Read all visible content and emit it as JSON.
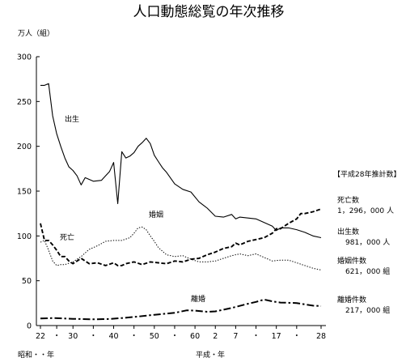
{
  "chart_data": {
    "type": "line",
    "title": "人口動態総覧の年次推移",
    "ylabel": "万人（組）",
    "ylim": [
      0,
      300
    ],
    "yticks": [
      0,
      50,
      100,
      150,
      200,
      250,
      300
    ],
    "x_range": [
      1947,
      2016
    ],
    "x_ticks": [
      {
        "x": 1947,
        "label": "22"
      },
      {
        "x": 1951,
        "label": "・"
      },
      {
        "x": 1955,
        "label": "30"
      },
      {
        "x": 1960,
        "label": "・"
      },
      {
        "x": 1965,
        "label": "40"
      },
      {
        "x": 1970,
        "label": "・"
      },
      {
        "x": 1975,
        "label": "50"
      },
      {
        "x": 1980,
        "label": "・"
      },
      {
        "x": 1985,
        "label": "60"
      },
      {
        "x": 1990,
        "label": "2"
      },
      {
        "x": 1995,
        "label": "7"
      },
      {
        "x": 2000,
        "label": "・"
      },
      {
        "x": 2005,
        "label": "17"
      },
      {
        "x": 2010,
        "label": "・"
      },
      {
        "x": 2016,
        "label": "28"
      }
    ],
    "xlabel_showa": "昭和・・年",
    "xlabel_heisei": "平成・年",
    "legend_header": "【平成28年推計数】",
    "series": [
      {
        "name": "出生",
        "style": "solid",
        "x": [
          1947,
          1948,
          1949,
          1950,
          1951,
          1952,
          1953,
          1954,
          1955,
          1956,
          1957,
          1958,
          1960,
          1962,
          1964,
          1965,
          1966,
          1967,
          1968,
          1969,
          1970,
          1971,
          1972,
          1973,
          1974,
          1975,
          1976,
          1977,
          1978,
          1980,
          1982,
          1984,
          1986,
          1988,
          1990,
          1992,
          1994,
          1995,
          1996,
          1998,
          2000,
          2002,
          2004,
          2005,
          2006,
          2008,
          2010,
          2012,
          2014,
          2016
        ],
        "values": [
          268,
          268,
          270,
          234,
          214,
          200,
          187,
          177,
          173,
          167,
          157,
          165,
          161,
          162,
          172,
          182,
          136,
          194,
          187,
          189,
          193,
          200,
          204,
          209,
          203,
          190,
          183,
          176,
          171,
          158,
          152,
          149,
          138,
          131,
          122,
          121,
          124,
          119,
          121,
          120,
          119,
          115,
          111,
          106,
          109,
          109,
          107,
          104,
          100,
          98
        ]
      },
      {
        "name": "死亡",
        "style": "dashed",
        "x": [
          1947,
          1948,
          1949,
          1950,
          1951,
          1952,
          1953,
          1954,
          1955,
          1957,
          1959,
          1961,
          1963,
          1965,
          1966,
          1967,
          1968,
          1970,
          1972,
          1974,
          1976,
          1978,
          1980,
          1982,
          1984,
          1986,
          1988,
          1990,
          1992,
          1994,
          1995,
          1996,
          1998,
          2000,
          2002,
          2004,
          2005,
          2006,
          2008,
          2010,
          2011,
          2012,
          2014,
          2016
        ],
        "values": [
          114,
          95,
          95,
          90,
          84,
          77,
          77,
          72,
          69,
          75,
          69,
          70,
          67,
          70,
          67,
          67,
          69,
          71,
          68,
          71,
          70,
          69,
          72,
          71,
          74,
          75,
          79,
          82,
          86,
          88,
          92,
          90,
          94,
          96,
          98,
          103,
          108,
          108,
          114,
          119,
          125,
          125,
          127,
          130
        ]
      },
      {
        "name": "婚姻件数",
        "style": "dotted",
        "x": [
          1947,
          1948,
          1949,
          1950,
          1951,
          1952,
          1953,
          1955,
          1957,
          1959,
          1961,
          1963,
          1965,
          1967,
          1969,
          1970,
          1971,
          1972,
          1973,
          1974,
          1975,
          1976,
          1978,
          1980,
          1982,
          1984,
          1986,
          1988,
          1990,
          1992,
          1994,
          1996,
          1998,
          2000,
          2002,
          2004,
          2006,
          2008,
          2010,
          2012,
          2014,
          2016
        ],
        "values": [
          93,
          95,
          84,
          72,
          67,
          68,
          68,
          71,
          77,
          85,
          89,
          94,
          95,
          95,
          98,
          103,
          109,
          110,
          107,
          100,
          94,
          87,
          79,
          77,
          78,
          74,
          71,
          71,
          72,
          75,
          78,
          80,
          78,
          80,
          76,
          72,
          73,
          73,
          70,
          67,
          64,
          62
        ]
      },
      {
        "name": "離婚件数",
        "style": "dashdot",
        "x": [
          1947,
          1950,
          1955,
          1960,
          1964,
          1967,
          1970,
          1975,
          1980,
          1983,
          1985,
          1988,
          1990,
          1994,
          1998,
          2000,
          2002,
          2004,
          2006,
          2010,
          2014,
          2016
        ],
        "values": [
          7.9,
          8.4,
          7.5,
          7.0,
          7.3,
          8.4,
          9.6,
          12.0,
          14.2,
          17.0,
          16.6,
          15.4,
          15.8,
          19.6,
          24.3,
          26.4,
          29.0,
          27.0,
          25.7,
          25.1,
          22.2,
          21.7
        ]
      }
    ],
    "labels": {
      "birth": "出生",
      "death": "死亡",
      "marriage": "婚姻",
      "divorce": "離婚"
    },
    "legend": [
      {
        "name": "死亡数",
        "value": "1，296，000 人"
      },
      {
        "name": "出生数",
        "value": "981，000 人"
      },
      {
        "name": "婚姻件数",
        "value": "621，000 組"
      },
      {
        "name": "離婚件数",
        "value": "217，000 組"
      }
    ]
  }
}
